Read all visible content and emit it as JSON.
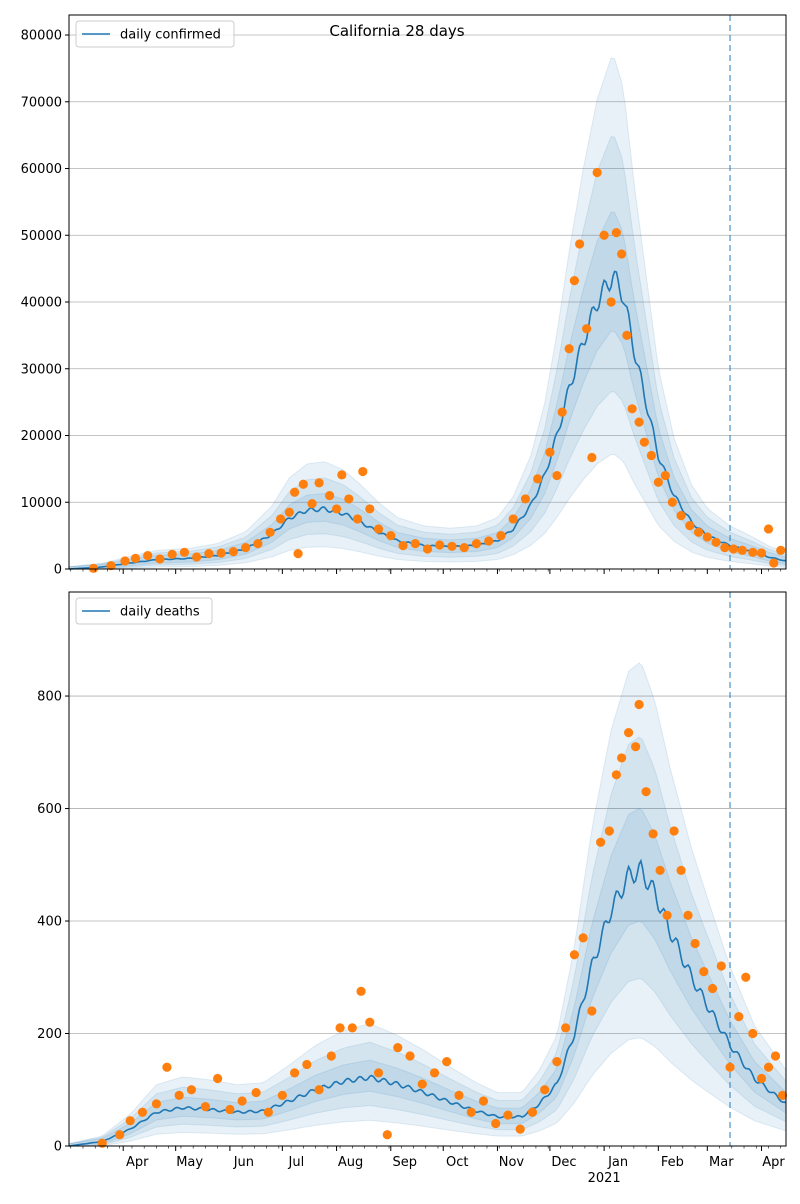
{
  "figure_title": "California 28 days",
  "colors": {
    "model": "#1f77b4",
    "observed": "#ff7f0e",
    "band": "#1f77b4",
    "grid": "#b0b0b0",
    "marker_line": "#1f77b4"
  },
  "x_axis": {
    "months": [
      "Apr",
      "May",
      "Jun",
      "Jul",
      "Aug",
      "Sep",
      "Oct",
      "Nov",
      "Dec",
      "Jan",
      "Feb",
      "Mar",
      "Apr"
    ],
    "year_label": "2021",
    "year_under": "Jan",
    "range": [
      "2020-03-01",
      "2021-04-15"
    ],
    "forecast_start": "2021-03-14"
  },
  "chart_data": [
    {
      "type": "line",
      "legend": "daily confirmed",
      "ylim": [
        0,
        83000
      ],
      "yticks": [
        "0",
        "10000",
        "20000",
        "30000",
        "40000",
        "50000",
        "60000",
        "70000",
        "80000"
      ],
      "grid": "horizontal",
      "legend_position": "top-left",
      "model_line": [
        [
          "2020-03-01",
          0
        ],
        [
          "2020-03-20",
          300
        ],
        [
          "2020-04-05",
          900
        ],
        [
          "2020-04-20",
          1400
        ],
        [
          "2020-05-10",
          1600
        ],
        [
          "2020-05-25",
          2000
        ],
        [
          "2020-06-10",
          3000
        ],
        [
          "2020-06-25",
          5200
        ],
        [
          "2020-07-05",
          7600
        ],
        [
          "2020-07-15",
          8800
        ],
        [
          "2020-07-25",
          9000
        ],
        [
          "2020-08-05",
          8300
        ],
        [
          "2020-08-15",
          7000
        ],
        [
          "2020-08-25",
          5500
        ],
        [
          "2020-09-05",
          4200
        ],
        [
          "2020-09-20",
          3500
        ],
        [
          "2020-10-05",
          3300
        ],
        [
          "2020-10-20",
          3500
        ],
        [
          "2020-11-01",
          4200
        ],
        [
          "2020-11-10",
          6000
        ],
        [
          "2020-11-20",
          9500
        ],
        [
          "2020-11-28",
          14000
        ],
        [
          "2020-12-05",
          20000
        ],
        [
          "2020-12-12",
          27000
        ],
        [
          "2020-12-20",
          34000
        ],
        [
          "2020-12-28",
          40000
        ],
        [
          "2021-01-06",
          44000
        ],
        [
          "2021-01-12",
          41000
        ],
        [
          "2021-01-18",
          33000
        ],
        [
          "2021-01-25",
          25000
        ],
        [
          "2021-02-01",
          17000
        ],
        [
          "2021-02-10",
          11000
        ],
        [
          "2021-02-20",
          7000
        ],
        [
          "2021-03-01",
          5000
        ],
        [
          "2021-03-14",
          3500
        ],
        [
          "2021-03-25",
          2700
        ],
        [
          "2021-04-05",
          1800
        ],
        [
          "2021-04-15",
          1200
        ]
      ],
      "observed": [
        [
          "2020-03-15",
          100
        ],
        [
          "2020-03-25",
          500
        ],
        [
          "2020-04-02",
          1200
        ],
        [
          "2020-04-08",
          1600
        ],
        [
          "2020-04-15",
          2000
        ],
        [
          "2020-04-22",
          1500
        ],
        [
          "2020-04-29",
          2200
        ],
        [
          "2020-05-06",
          2500
        ],
        [
          "2020-05-13",
          1800
        ],
        [
          "2020-05-20",
          2300
        ],
        [
          "2020-05-27",
          2400
        ],
        [
          "2020-06-03",
          2600
        ],
        [
          "2020-06-10",
          3200
        ],
        [
          "2020-06-17",
          3800
        ],
        [
          "2020-06-24",
          5500
        ],
        [
          "2020-06-30",
          7500
        ],
        [
          "2020-07-05",
          8500
        ],
        [
          "2020-07-08",
          11500
        ],
        [
          "2020-07-10",
          2300
        ],
        [
          "2020-07-13",
          12700
        ],
        [
          "2020-07-18",
          9800
        ],
        [
          "2020-07-22",
          12900
        ],
        [
          "2020-07-28",
          11000
        ],
        [
          "2020-08-01",
          9000
        ],
        [
          "2020-08-04",
          14100
        ],
        [
          "2020-08-08",
          10500
        ],
        [
          "2020-08-13",
          7500
        ],
        [
          "2020-08-16",
          14600
        ],
        [
          "2020-08-20",
          9000
        ],
        [
          "2020-08-25",
          6000
        ],
        [
          "2020-09-01",
          5000
        ],
        [
          "2020-09-08",
          3500
        ],
        [
          "2020-09-15",
          3800
        ],
        [
          "2020-09-22",
          3000
        ],
        [
          "2020-09-29",
          3600
        ],
        [
          "2020-10-06",
          3400
        ],
        [
          "2020-10-13",
          3200
        ],
        [
          "2020-10-20",
          3800
        ],
        [
          "2020-10-27",
          4200
        ],
        [
          "2020-11-03",
          5000
        ],
        [
          "2020-11-10",
          7500
        ],
        [
          "2020-11-17",
          10500
        ],
        [
          "2020-11-24",
          13500
        ],
        [
          "2020-12-01",
          17500
        ],
        [
          "2020-12-05",
          14000
        ],
        [
          "2020-12-08",
          23500
        ],
        [
          "2020-12-12",
          33000
        ],
        [
          "2020-12-15",
          43200
        ],
        [
          "2020-12-18",
          48700
        ],
        [
          "2020-12-22",
          36000
        ],
        [
          "2020-12-25",
          16700
        ],
        [
          "2020-12-28",
          59400
        ],
        [
          "2021-01-01",
          50000
        ],
        [
          "2021-01-05",
          40000
        ],
        [
          "2021-01-08",
          50400
        ],
        [
          "2021-01-11",
          47200
        ],
        [
          "2021-01-14",
          35000
        ],
        [
          "2021-01-17",
          24000
        ],
        [
          "2021-01-21",
          22000
        ],
        [
          "2021-01-24",
          19000
        ],
        [
          "2021-01-28",
          17000
        ],
        [
          "2021-02-01",
          13000
        ],
        [
          "2021-02-05",
          14000
        ],
        [
          "2021-02-09",
          10000
        ],
        [
          "2021-02-14",
          8000
        ],
        [
          "2021-02-19",
          6500
        ],
        [
          "2021-02-24",
          5500
        ],
        [
          "2021-03-01",
          4800
        ],
        [
          "2021-03-06",
          4000
        ],
        [
          "2021-03-11",
          3200
        ],
        [
          "2021-03-16",
          3000
        ],
        [
          "2021-03-21",
          2800
        ],
        [
          "2021-03-27",
          2500
        ],
        [
          "2021-04-01",
          2400
        ],
        [
          "2021-04-05",
          6000
        ],
        [
          "2021-04-08",
          900
        ],
        [
          "2021-04-12",
          2800
        ]
      ]
    },
    {
      "type": "line",
      "legend": "daily deaths",
      "ylim": [
        0,
        985
      ],
      "yticks": [
        "0",
        "200",
        "400",
        "600",
        "800"
      ],
      "grid": "horizontal",
      "legend_position": "top-left",
      "model_line": [
        [
          "2020-03-01",
          0
        ],
        [
          "2020-03-20",
          8
        ],
        [
          "2020-04-05",
          30
        ],
        [
          "2020-04-20",
          60
        ],
        [
          "2020-05-05",
          68
        ],
        [
          "2020-05-20",
          65
        ],
        [
          "2020-06-05",
          60
        ],
        [
          "2020-06-20",
          62
        ],
        [
          "2020-07-05",
          80
        ],
        [
          "2020-07-20",
          100
        ],
        [
          "2020-08-05",
          115
        ],
        [
          "2020-08-20",
          122
        ],
        [
          "2020-09-05",
          110
        ],
        [
          "2020-09-20",
          95
        ],
        [
          "2020-10-05",
          78
        ],
        [
          "2020-10-20",
          62
        ],
        [
          "2020-11-01",
          52
        ],
        [
          "2020-11-15",
          52
        ],
        [
          "2020-11-25",
          75
        ],
        [
          "2020-12-05",
          110
        ],
        [
          "2020-12-15",
          200
        ],
        [
          "2020-12-25",
          320
        ],
        [
          "2021-01-05",
          420
        ],
        [
          "2021-01-15",
          480
        ],
        [
          "2021-01-22",
          490
        ],
        [
          "2021-01-30",
          450
        ],
        [
          "2021-02-08",
          380
        ],
        [
          "2021-02-20",
          300
        ],
        [
          "2021-03-01",
          250
        ],
        [
          "2021-03-14",
          180
        ],
        [
          "2021-03-28",
          120
        ],
        [
          "2021-04-15",
          75
        ]
      ],
      "observed": [
        [
          "2020-03-20",
          5
        ],
        [
          "2020-03-30",
          20
        ],
        [
          "2020-04-05",
          45
        ],
        [
          "2020-04-12",
          60
        ],
        [
          "2020-04-20",
          75
        ],
        [
          "2020-04-26",
          140
        ],
        [
          "2020-05-03",
          90
        ],
        [
          "2020-05-10",
          100
        ],
        [
          "2020-05-18",
          70
        ],
        [
          "2020-05-25",
          120
        ],
        [
          "2020-06-01",
          65
        ],
        [
          "2020-06-08",
          80
        ],
        [
          "2020-06-16",
          95
        ],
        [
          "2020-06-23",
          60
        ],
        [
          "2020-07-01",
          90
        ],
        [
          "2020-07-08",
          130
        ],
        [
          "2020-07-15",
          145
        ],
        [
          "2020-07-22",
          100
        ],
        [
          "2020-07-29",
          160
        ],
        [
          "2020-08-03",
          210
        ],
        [
          "2020-08-10",
          210
        ],
        [
          "2020-08-15",
          275
        ],
        [
          "2020-08-20",
          220
        ],
        [
          "2020-08-25",
          130
        ],
        [
          "2020-08-30",
          20
        ],
        [
          "2020-09-05",
          175
        ],
        [
          "2020-09-12",
          160
        ],
        [
          "2020-09-19",
          110
        ],
        [
          "2020-09-26",
          130
        ],
        [
          "2020-10-03",
          150
        ],
        [
          "2020-10-10",
          90
        ],
        [
          "2020-10-17",
          60
        ],
        [
          "2020-10-24",
          80
        ],
        [
          "2020-10-31",
          40
        ],
        [
          "2020-11-07",
          55
        ],
        [
          "2020-11-14",
          30
        ],
        [
          "2020-11-21",
          60
        ],
        [
          "2020-11-28",
          100
        ],
        [
          "2020-12-05",
          150
        ],
        [
          "2020-12-10",
          210
        ],
        [
          "2020-12-15",
          340
        ],
        [
          "2020-12-20",
          370
        ],
        [
          "2020-12-25",
          240
        ],
        [
          "2020-12-30",
          540
        ],
        [
          "2021-01-04",
          560
        ],
        [
          "2021-01-08",
          660
        ],
        [
          "2021-01-11",
          690
        ],
        [
          "2021-01-15",
          735
        ],
        [
          "2021-01-19",
          710
        ],
        [
          "2021-01-21",
          785
        ],
        [
          "2021-01-25",
          630
        ],
        [
          "2021-01-29",
          555
        ],
        [
          "2021-02-02",
          490
        ],
        [
          "2021-02-06",
          410
        ],
        [
          "2021-02-10",
          560
        ],
        [
          "2021-02-14",
          490
        ],
        [
          "2021-02-18",
          410
        ],
        [
          "2021-02-22",
          360
        ],
        [
          "2021-02-27",
          310
        ],
        [
          "2021-03-04",
          280
        ],
        [
          "2021-03-09",
          320
        ],
        [
          "2021-03-14",
          140
        ],
        [
          "2021-03-19",
          230
        ],
        [
          "2021-03-23",
          300
        ],
        [
          "2021-03-27",
          200
        ],
        [
          "2021-04-01",
          120
        ],
        [
          "2021-04-05",
          140
        ],
        [
          "2021-04-09",
          160
        ],
        [
          "2021-04-13",
          90
        ]
      ]
    }
  ]
}
